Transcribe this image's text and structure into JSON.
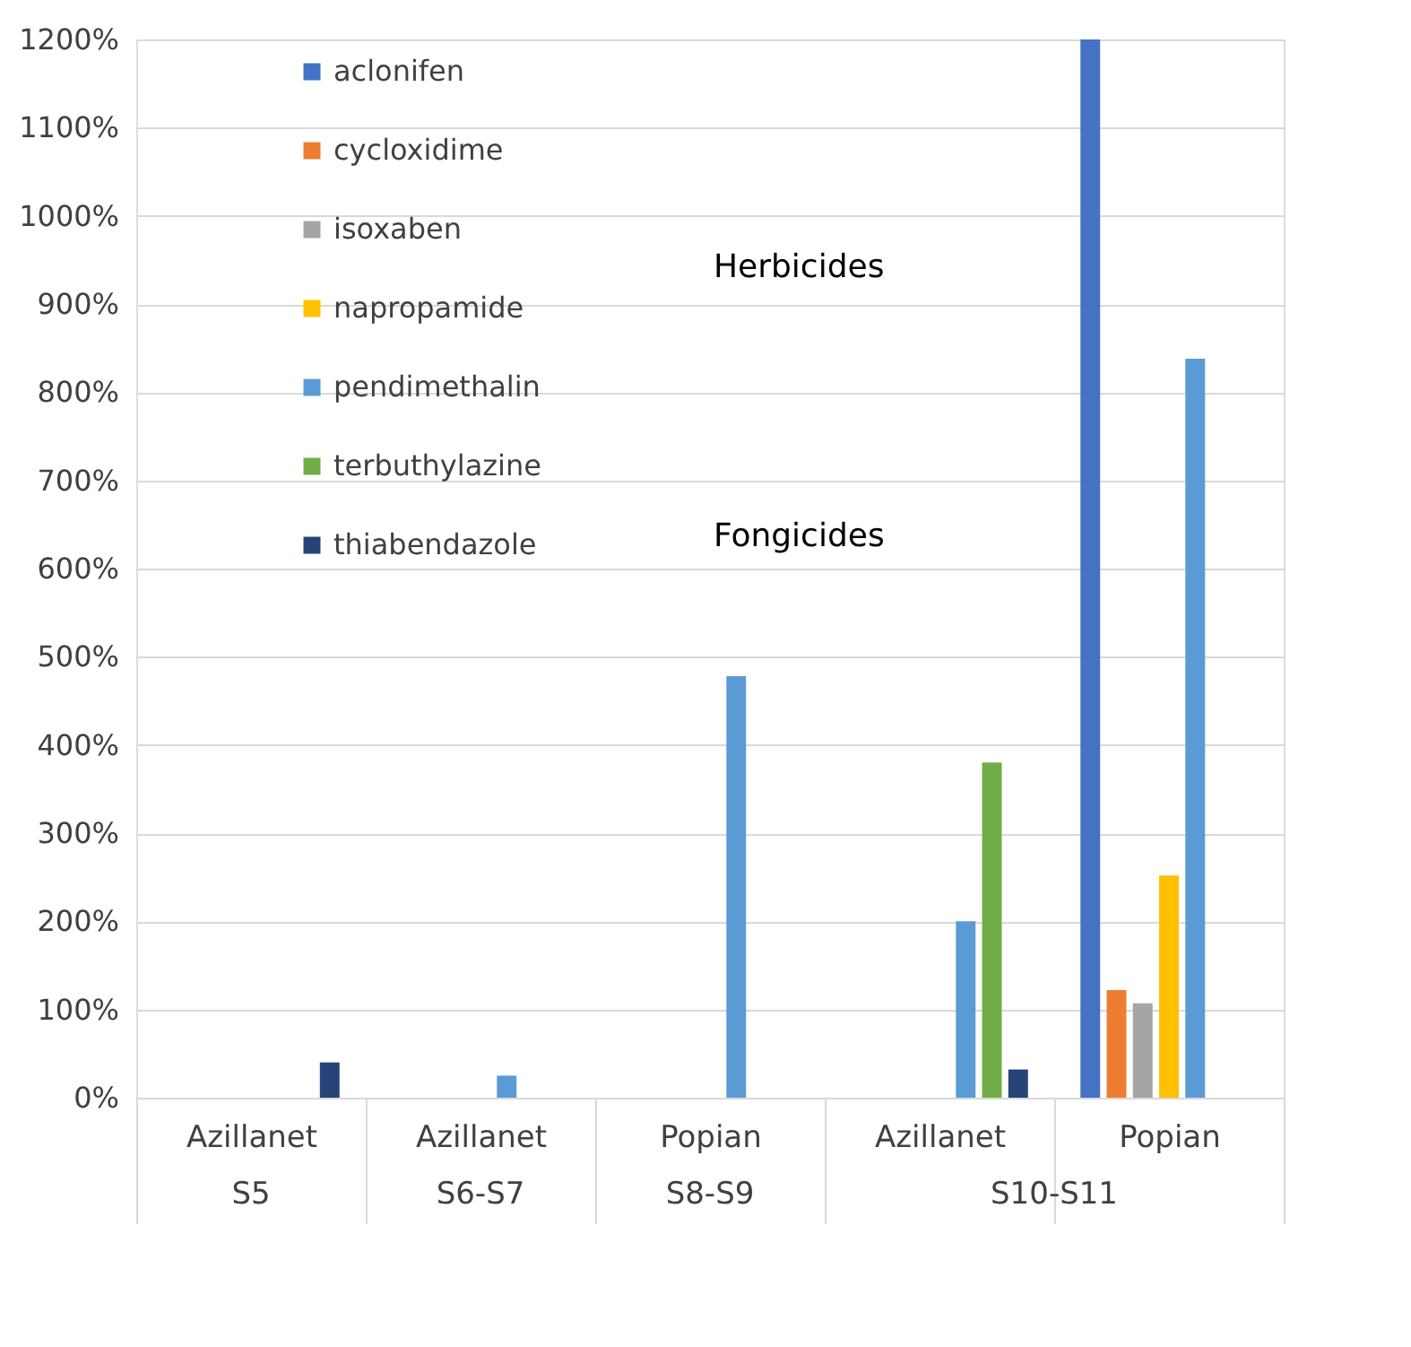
{
  "chart_data": {
    "type": "bar",
    "categories": [
      "Azillanet",
      "Azillanet",
      "Popian",
      "Azillanet",
      "Popian"
    ],
    "series": [
      {
        "name": "aclonifen",
        "color": "#4472c4",
        "values": [
          null,
          null,
          null,
          null,
          1200
        ]
      },
      {
        "name": "cycloxidime",
        "color": "#ed7d31",
        "values": [
          null,
          null,
          null,
          null,
          122
        ]
      },
      {
        "name": "isoxaben",
        "color": "#a5a5a5",
        "values": [
          null,
          null,
          null,
          null,
          107
        ]
      },
      {
        "name": "napropamide",
        "color": "#ffc000",
        "values": [
          null,
          null,
          null,
          null,
          252
        ]
      },
      {
        "name": "pendimethalin",
        "color": "#5b9bd5",
        "values": [
          null,
          25,
          478,
          200,
          838
        ]
      },
      {
        "name": "terbuthylazine",
        "color": "#70ad47",
        "values": [
          null,
          null,
          null,
          380,
          null
        ]
      },
      {
        "name": "thiabendazole",
        "color": "#264478",
        "values": [
          40,
          null,
          null,
          32,
          null
        ]
      }
    ],
    "ylim": [
      0,
      1200
    ],
    "yticks": [
      {
        "value": 0,
        "label": "0%"
      },
      {
        "value": 100,
        "label": "100%"
      },
      {
        "value": 200,
        "label": "200%"
      },
      {
        "value": 300,
        "label": "300%"
      },
      {
        "value": 400,
        "label": "400%"
      },
      {
        "value": 500,
        "label": "500%"
      },
      {
        "value": 600,
        "label": "600%"
      },
      {
        "value": 700,
        "label": "700%"
      },
      {
        "value": 800,
        "label": "800%"
      },
      {
        "value": 900,
        "label": "900%"
      },
      {
        "value": 1000,
        "label": "1000%"
      },
      {
        "value": 1100,
        "label": "1100%"
      },
      {
        "value": 1200,
        "label": "1200%"
      }
    ],
    "annotations": [
      "S5",
      "S6-S7",
      "S8-S9",
      "S10-S11",
      "Herbicides",
      "Fongicides"
    ],
    "grid": "y",
    "legend": "top left"
  }
}
